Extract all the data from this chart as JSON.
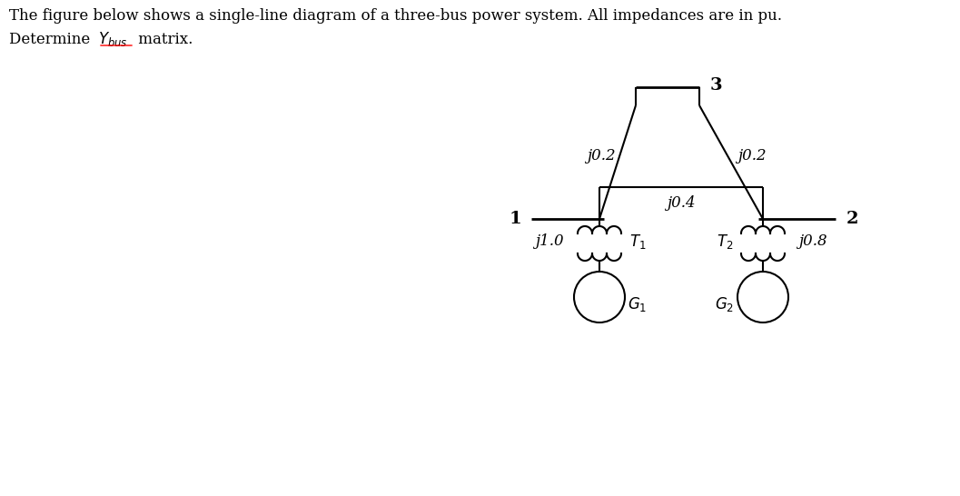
{
  "bg_color": "#ffffff",
  "line_color": "#000000",
  "fig_width": 10.57,
  "fig_height": 5.46,
  "dpi": 100,
  "header_line1": "The figure below shows a single-line diagram of a three-bus power system. All impedances are in pu.",
  "header_line2a": "Determine ",
  "header_line2b": " matrix.",
  "bus1_label": "1",
  "bus2_label": "2",
  "bus3_label": "3",
  "label_j02_left": "j0.2",
  "label_j02_right": "j0.2",
  "label_j04": "j0.4",
  "label_j10": "j1.0",
  "label_j08": "j0.8",
  "label_T1": "$T_1$",
  "label_T2": "$T_2$",
  "label_G1": "$G_1$",
  "label_G2": "$G_2$"
}
